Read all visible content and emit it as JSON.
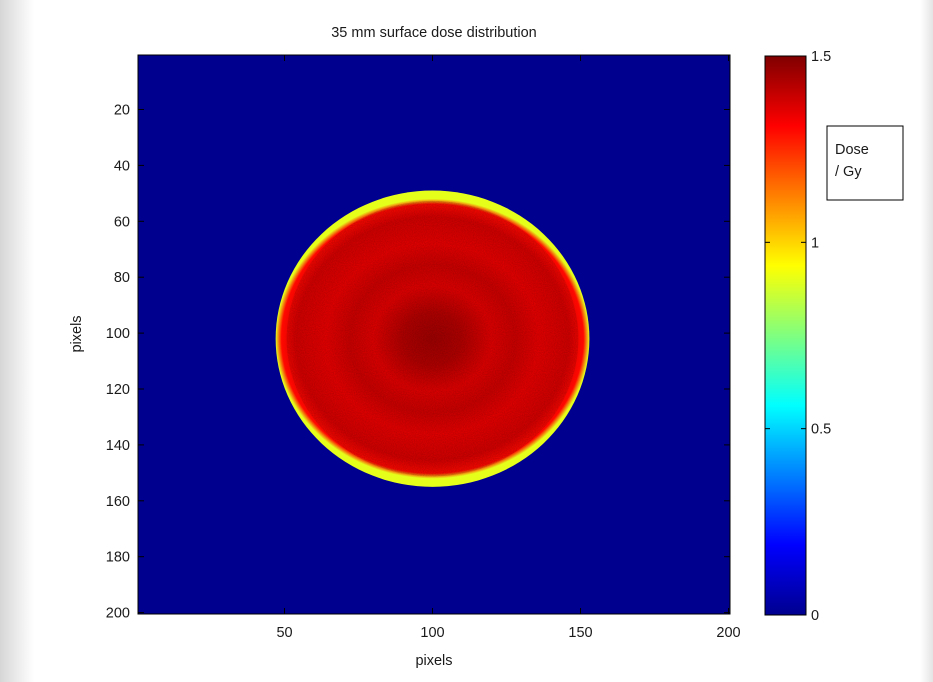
{
  "chart_data": {
    "type": "heatmap",
    "title": "35 mm surface dose distribution",
    "xlabel": "pixels",
    "ylabel": "pixels",
    "xlim": [
      1,
      200
    ],
    "ylim": [
      1,
      200
    ],
    "y_reversed": true,
    "xticks": [
      50,
      100,
      150,
      200
    ],
    "yticks": [
      20,
      40,
      60,
      80,
      100,
      120,
      140,
      160,
      180,
      200
    ],
    "colormap": "jet",
    "background_value": 0,
    "field": {
      "shape": "circle",
      "center_x": 100,
      "center_y": 102,
      "radius": 53,
      "values": [
        {
          "r": 0,
          "dose": 1.45
        },
        {
          "r": 10,
          "dose": 1.42
        },
        {
          "r": 20,
          "dose": 1.35
        },
        {
          "r": 28,
          "dose": 1.38
        },
        {
          "r": 36,
          "dose": 1.34
        },
        {
          "r": 46,
          "dose": 1.37
        },
        {
          "r": 51,
          "dose": 1.3
        },
        {
          "r": 53,
          "dose": 0.9
        }
      ]
    },
    "colorbar": {
      "label_lines": [
        "Dose",
        "/ Gy"
      ],
      "min": 0,
      "max": 1.5,
      "ticks": [
        0,
        0.5,
        1,
        1.5
      ],
      "tick_labels": [
        "0",
        "0.5",
        "1",
        "1.5"
      ]
    }
  }
}
